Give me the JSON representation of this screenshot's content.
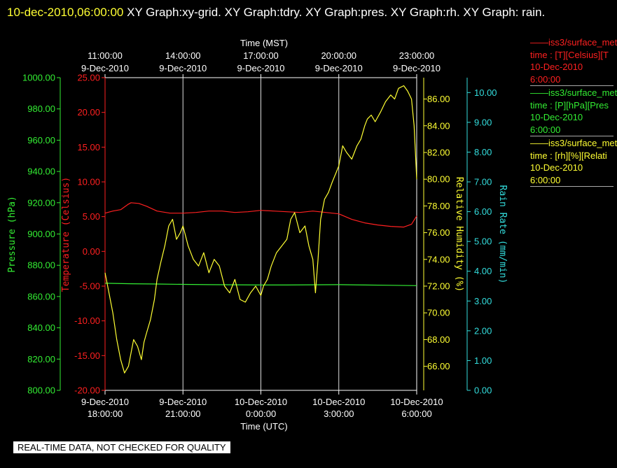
{
  "header": {
    "timestamp": "10-dec-2010,06:00:00",
    "rest": " XY Graph:xy-grid.  XY Graph:tdry.  XY Graph:pres.  XY Graph:rh.  XY Graph: rain."
  },
  "footer": {
    "note": "REAL-TIME DATA, NOT CHECKED FOR QUALITY"
  },
  "legend": [
    {
      "line1": "——iss3/surface_met",
      "line2": "time : [T][Celsius][T",
      "line3": "10-Dec-2010",
      "line4": "6:00:00",
      "color": "#ff2020"
    },
    {
      "line1": "——iss3/surface_met",
      "line2": "time : [P][hPa][Pres",
      "line3": "10-Dec-2010",
      "line4": "6:00:00",
      "color": "#33ee33"
    },
    {
      "line1": "——iss3/surface_met",
      "line2": "time : [rh][%][Relati",
      "line3": "10-Dec-2010",
      "line4": "6:00:00",
      "color": "#ffff33"
    }
  ],
  "chart_data": {
    "type": "line",
    "xlabel_top": "Time (MST)",
    "xlabel_bottom": "Time (UTC)",
    "x_range_utc": [
      "9-Dec-2010 18:00:00",
      "10-Dec-2010 6:00:00"
    ],
    "grid": true,
    "top_ticks": [
      {
        "time": "11:00:00",
        "date": "9-Dec-2010",
        "hours": 0
      },
      {
        "time": "14:00:00",
        "date": "9-Dec-2010",
        "hours": 3
      },
      {
        "time": "17:00:00",
        "date": "9-Dec-2010",
        "hours": 6
      },
      {
        "time": "20:00:00",
        "date": "9-Dec-2010",
        "hours": 9
      },
      {
        "time": "23:00:00",
        "date": "9-Dec-2010",
        "hours": 12
      }
    ],
    "bottom_ticks": [
      {
        "date": "9-Dec-2010",
        "time": "18:00:00",
        "hours": 0
      },
      {
        "date": "9-Dec-2010",
        "time": "21:00:00",
        "hours": 3
      },
      {
        "date": "10-Dec-2010",
        "time": "0:00:00",
        "hours": 6
      },
      {
        "date": "10-Dec-2010",
        "time": "3:00:00",
        "hours": 9
      },
      {
        "date": "10-Dec-2010",
        "time": "6:00:00",
        "hours": 12
      }
    ],
    "axes": {
      "pressure": {
        "label": "Pressure (hPa)",
        "min": 800,
        "max": 1000,
        "step": 20,
        "color": "#33ee33",
        "ticks": [
          "800.00",
          "820.00",
          "840.00",
          "860.00",
          "880.00",
          "900.00",
          "920.00",
          "940.00",
          "960.00",
          "980.00",
          "1000.00"
        ]
      },
      "temperature": {
        "label": "Temperature (Celsius)",
        "min": -20,
        "max": 25,
        "step": 5,
        "color": "#ff2020",
        "ticks": [
          "-20.00",
          "-15.00",
          "-10.00",
          "-5.00",
          "0.00",
          "5.00",
          "10.00",
          "15.00",
          "20.00",
          "25.00"
        ]
      },
      "humidity": {
        "label": "Relative Humidity (%)",
        "min": 64.2,
        "max": 87.6,
        "color": "#ffff33",
        "ticks": [
          "66.00",
          "68.00",
          "70.00",
          "72.00",
          "74.00",
          "76.00",
          "78.00",
          "80.00",
          "82.00",
          "84.00",
          "86.00"
        ]
      },
      "rain": {
        "label": "Rain Rate (mm/min)",
        "min": 0,
        "max": 10.5,
        "color": "#33dddd",
        "ticks": [
          "0.00",
          "1.00",
          "2.00",
          "3.00",
          "4.00",
          "5.00",
          "6.00",
          "7.00",
          "8.00",
          "9.00",
          "10.00"
        ]
      }
    },
    "series": [
      {
        "name": "T",
        "axis": "temperature",
        "color": "#ff2020",
        "x": [
          0,
          0.3,
          0.6,
          0.9,
          1.0,
          1.3,
          1.6,
          2.0,
          2.5,
          3.0,
          3.5,
          4.0,
          4.5,
          5.0,
          5.5,
          6.0,
          6.5,
          7.0,
          7.5,
          8.0,
          8.5,
          9.0,
          9.5,
          10.0,
          10.5,
          11.0,
          11.5,
          11.8,
          12.0
        ],
        "y": [
          5.5,
          5.8,
          6.0,
          6.8,
          7.0,
          6.9,
          6.5,
          5.8,
          5.5,
          5.5,
          5.6,
          5.8,
          5.8,
          5.6,
          5.7,
          5.9,
          5.8,
          5.7,
          5.6,
          5.8,
          5.6,
          5.4,
          4.6,
          4.1,
          3.8,
          3.6,
          3.5,
          3.9,
          5.1
        ]
      },
      {
        "name": "P",
        "axis": "pressure",
        "color": "#33ee33",
        "x": [
          0,
          1,
          2,
          3,
          4,
          5,
          6,
          7,
          8,
          9,
          10,
          11,
          12
        ],
        "y": [
          868.5,
          868.2,
          868.0,
          867.8,
          867.6,
          867.5,
          867.4,
          867.4,
          867.5,
          867.6,
          867.4,
          867.2,
          867.0
        ]
      },
      {
        "name": "RH",
        "axis": "humidity",
        "color": "#ffff33",
        "x": [
          0,
          0.15,
          0.3,
          0.45,
          0.6,
          0.75,
          0.9,
          1.0,
          1.1,
          1.25,
          1.4,
          1.5,
          1.6,
          1.75,
          1.9,
          2.0,
          2.15,
          2.3,
          2.45,
          2.6,
          2.75,
          2.9,
          3.0,
          3.2,
          3.4,
          3.6,
          3.8,
          4.0,
          4.2,
          4.4,
          4.6,
          4.8,
          5.0,
          5.2,
          5.4,
          5.6,
          5.8,
          6.0,
          6.1,
          6.25,
          6.4,
          6.6,
          6.8,
          7.0,
          7.15,
          7.3,
          7.5,
          7.7,
          7.85,
          8.0,
          8.1,
          8.2,
          8.3,
          8.45,
          8.6,
          8.75,
          8.9,
          9.0,
          9.15,
          9.3,
          9.5,
          9.7,
          9.85,
          10.0,
          10.1,
          10.25,
          10.4,
          10.6,
          10.8,
          11.0,
          11.15,
          11.3,
          11.5,
          11.65,
          11.8,
          11.9,
          12.0
        ],
        "y": [
          73.0,
          71.5,
          70.0,
          68.0,
          66.5,
          65.5,
          66.0,
          67.0,
          68.0,
          67.5,
          66.5,
          67.8,
          68.5,
          69.5,
          71.0,
          72.5,
          73.8,
          75.0,
          76.5,
          77.0,
          75.5,
          76.0,
          76.5,
          75.0,
          74.0,
          73.5,
          74.5,
          73.0,
          74.0,
          73.5,
          72.0,
          71.5,
          72.5,
          71.0,
          70.8,
          71.5,
          72.0,
          71.3,
          72.0,
          72.5,
          73.5,
          74.5,
          75.0,
          75.5,
          77.0,
          77.5,
          76.0,
          76.5,
          75.0,
          74.0,
          71.5,
          74.0,
          77.0,
          78.5,
          79.0,
          79.8,
          80.5,
          81.0,
          82.5,
          82.0,
          81.5,
          82.5,
          83.0,
          84.0,
          84.5,
          84.8,
          84.3,
          85.0,
          85.8,
          86.3,
          86.0,
          86.8,
          87.0,
          86.6,
          86.0,
          84.0,
          80.0
        ]
      }
    ]
  }
}
